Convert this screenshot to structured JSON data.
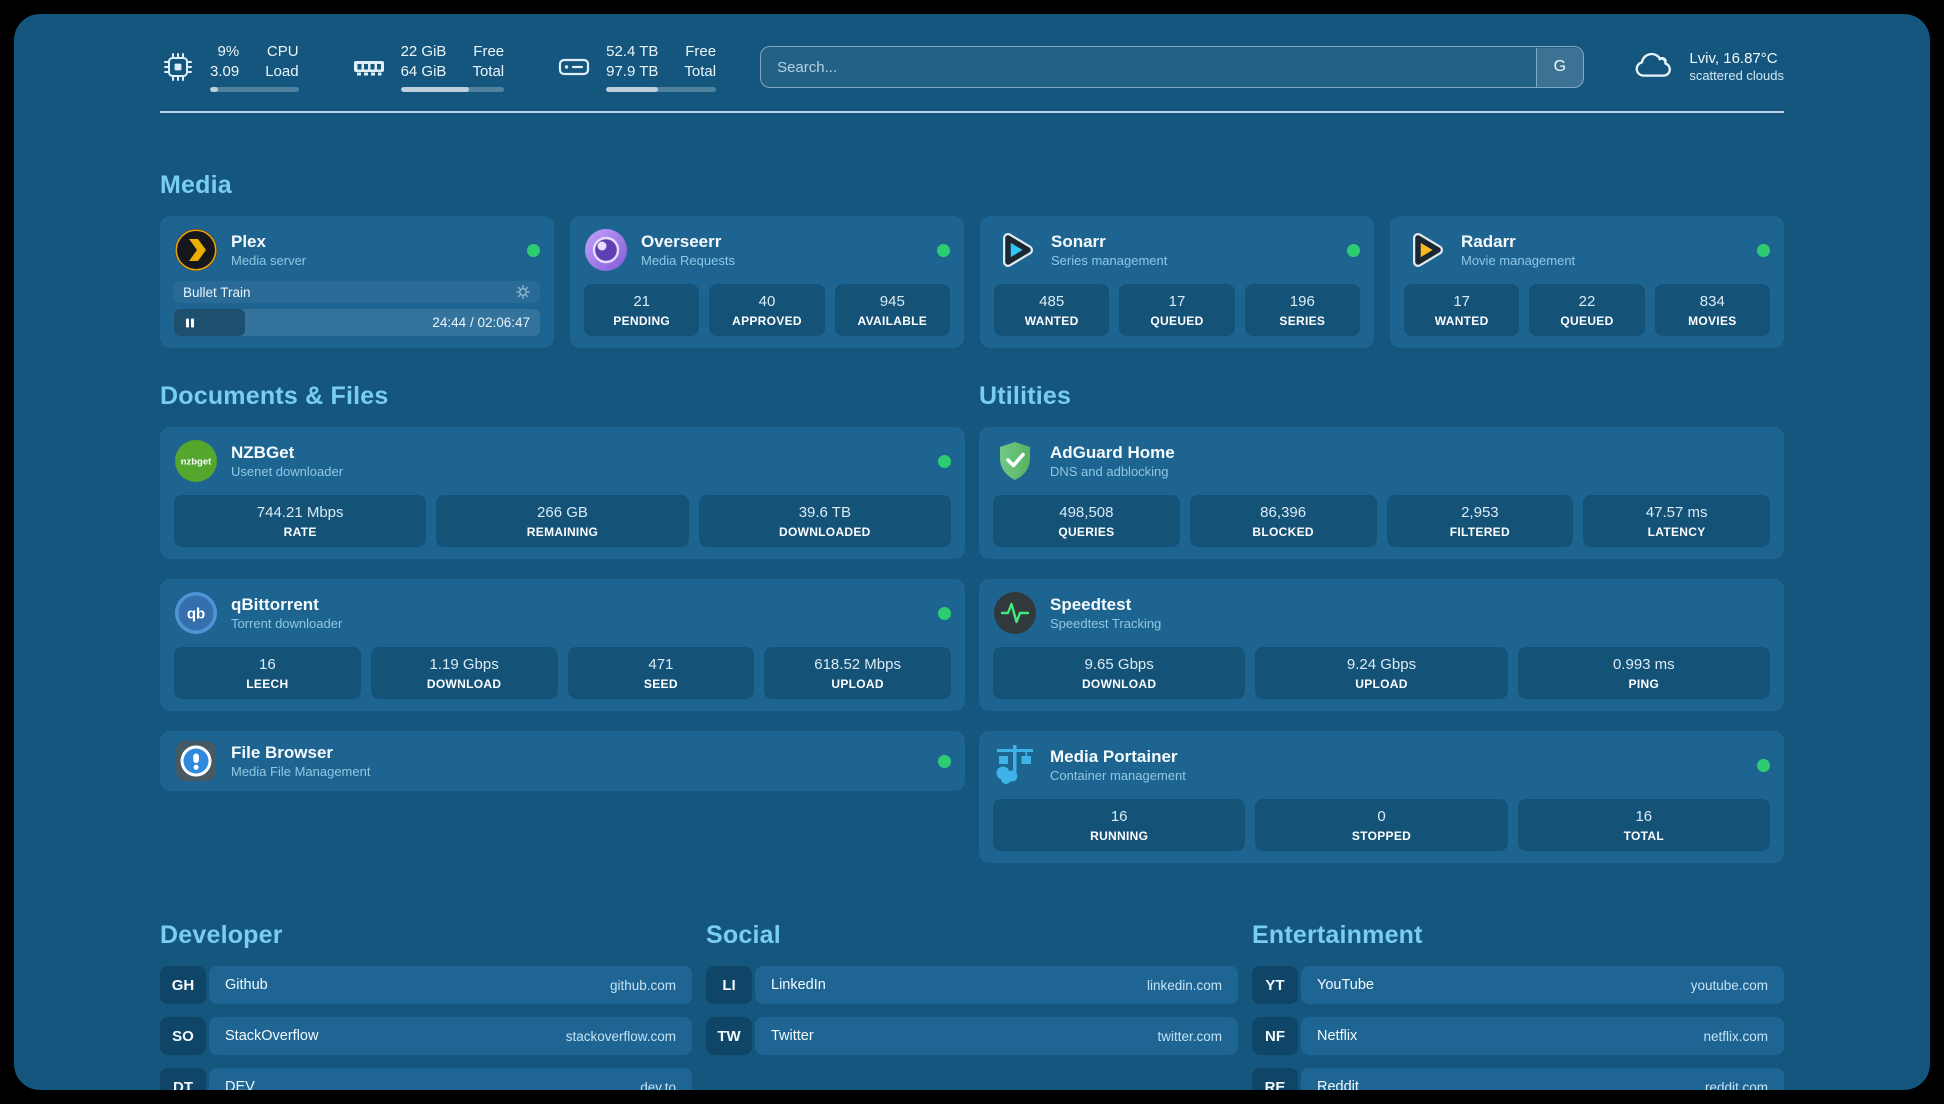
{
  "header": {
    "stats": [
      {
        "icon": "cpu-icon",
        "values": [
          "9%",
          "3.09"
        ],
        "labels": [
          "CPU",
          "Load"
        ],
        "progress_pct": 9
      },
      {
        "icon": "ram-icon",
        "values": [
          "22 GiB",
          "64 GiB"
        ],
        "labels": [
          "Free",
          "Total"
        ],
        "progress_pct": 66
      },
      {
        "icon": "disk-icon",
        "values": [
          "52.4 TB",
          "97.9 TB"
        ],
        "labels": [
          "Free",
          "Total"
        ],
        "progress_pct": 47
      }
    ],
    "search": {
      "placeholder": "Search...",
      "button_label": "G"
    },
    "weather": {
      "location": "Lviv, 16.87°C",
      "condition": "scattered clouds"
    }
  },
  "media": {
    "title": "Media",
    "plex": {
      "name": "Plex",
      "subtitle": "Media server",
      "status": "online",
      "now_playing": {
        "title": "Bullet Train",
        "time": "24:44 / 02:06:47",
        "progress_pct": 19.5
      }
    },
    "overseerr": {
      "name": "Overseerr",
      "subtitle": "Media Requests",
      "status": "online",
      "stats": [
        {
          "value": "21",
          "label": "PENDING"
        },
        {
          "value": "40",
          "label": "APPROVED"
        },
        {
          "value": "945",
          "label": "AVAILABLE"
        }
      ]
    },
    "sonarr": {
      "name": "Sonarr",
      "subtitle": "Series management",
      "status": "online",
      "stats": [
        {
          "value": "485",
          "label": "WANTED"
        },
        {
          "value": "17",
          "label": "QUEUED"
        },
        {
          "value": "196",
          "label": "SERIES"
        }
      ]
    },
    "radarr": {
      "name": "Radarr",
      "subtitle": "Movie management",
      "status": "online",
      "stats": [
        {
          "value": "17",
          "label": "WANTED"
        },
        {
          "value": "22",
          "label": "QUEUED"
        },
        {
          "value": "834",
          "label": "MOVIES"
        }
      ]
    }
  },
  "documents": {
    "title": "Documents & Files",
    "nzbget": {
      "name": "NZBGet",
      "subtitle": "Usenet downloader",
      "status": "online",
      "stats": [
        {
          "value": "744.21 Mbps",
          "label": "RATE"
        },
        {
          "value": "266 GB",
          "label": "REMAINING"
        },
        {
          "value": "39.6 TB",
          "label": "DOWNLOADED"
        }
      ]
    },
    "qbittorrent": {
      "name": "qBittorrent",
      "subtitle": "Torrent downloader",
      "status": "online",
      "stats": [
        {
          "value": "16",
          "label": "LEECH"
        },
        {
          "value": "1.19 Gbps",
          "label": "DOWNLOAD"
        },
        {
          "value": "471",
          "label": "SEED"
        },
        {
          "value": "618.52 Mbps",
          "label": "UPLOAD"
        }
      ]
    },
    "filebrowser": {
      "name": "File Browser",
      "subtitle": "Media File Management",
      "status": "online"
    }
  },
  "utilities": {
    "title": "Utilities",
    "adguard": {
      "name": "AdGuard Home",
      "subtitle": "DNS and adblocking",
      "stats": [
        {
          "value": "498,508",
          "label": "QUERIES"
        },
        {
          "value": "86,396",
          "label": "BLOCKED"
        },
        {
          "value": "2,953",
          "label": "FILTERED"
        },
        {
          "value": "47.57 ms",
          "label": "LATENCY"
        }
      ]
    },
    "speedtest": {
      "name": "Speedtest",
      "subtitle": "Speedtest Tracking",
      "stats": [
        {
          "value": "9.65 Gbps",
          "label": "DOWNLOAD"
        },
        {
          "value": "9.24 Gbps",
          "label": "UPLOAD"
        },
        {
          "value": "0.993 ms",
          "label": "PING"
        }
      ]
    },
    "portainer": {
      "name": "Media Portainer",
      "subtitle": "Container management",
      "status": "online",
      "stats": [
        {
          "value": "16",
          "label": "RUNNING"
        },
        {
          "value": "0",
          "label": "STOPPED"
        },
        {
          "value": "16",
          "label": "TOTAL"
        }
      ]
    }
  },
  "bookmarks": {
    "developer": {
      "title": "Developer",
      "items": [
        {
          "abbr": "GH",
          "name": "Github",
          "url": "github.com"
        },
        {
          "abbr": "SO",
          "name": "StackOverflow",
          "url": "stackoverflow.com"
        },
        {
          "abbr": "DT",
          "name": "DEV",
          "url": "dev.to"
        }
      ]
    },
    "social": {
      "title": "Social",
      "items": [
        {
          "abbr": "LI",
          "name": "LinkedIn",
          "url": "linkedin.com"
        },
        {
          "abbr": "TW",
          "name": "Twitter",
          "url": "twitter.com"
        }
      ]
    },
    "entertainment": {
      "title": "Entertainment",
      "items": [
        {
          "abbr": "YT",
          "name": "YouTube",
          "url": "youtube.com"
        },
        {
          "abbr": "NF",
          "name": "Netflix",
          "url": "netflix.com"
        },
        {
          "abbr": "RE",
          "name": "Reddit",
          "url": "reddit.com"
        }
      ]
    }
  },
  "colors": {
    "page_bg": "#14567E",
    "card_bg": "#1E6491",
    "heading": "#79CEEF",
    "status_online": "#2ECC71"
  }
}
